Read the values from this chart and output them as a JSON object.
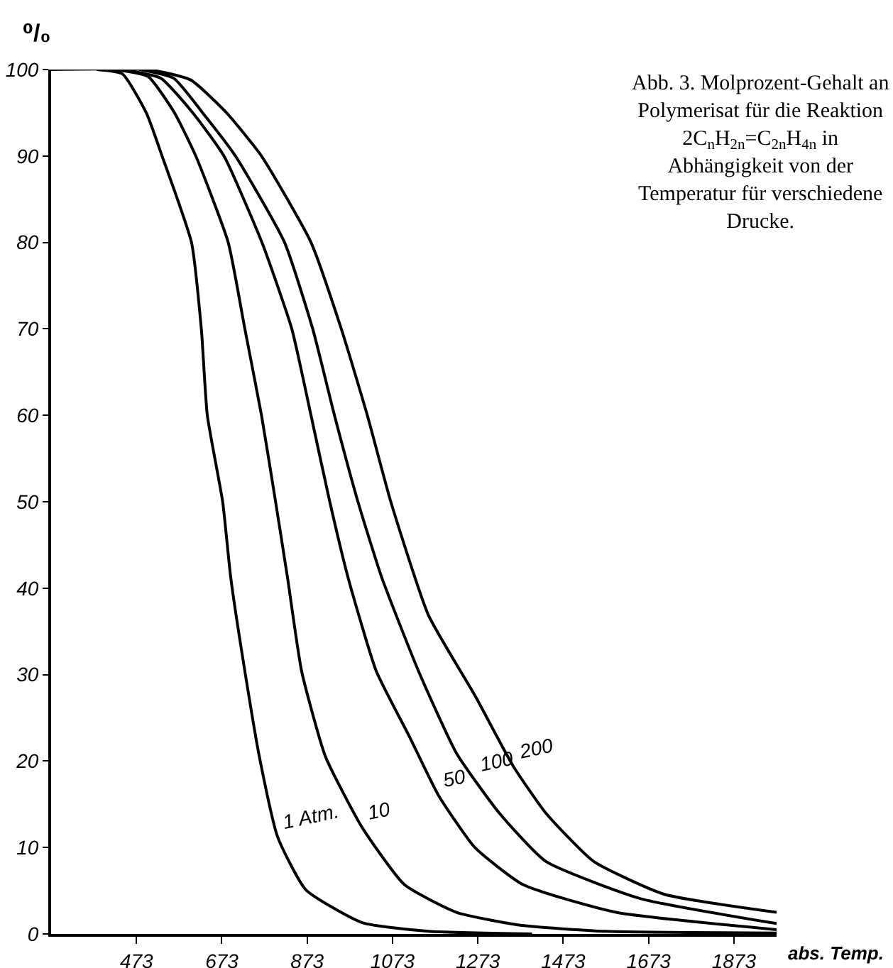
{
  "chart_data": {
    "type": "line",
    "title": "Abb. 3. Molprozent-Gehalt an Polymerisat für die Reaktion 2C$_{n}$H$_{2n}$=C$_{2n}$H$_{4n}$ in Abhängigkeit von der Temperatur für verschiedene Drucke.",
    "xlabel": "abs. Temp.",
    "ylabel": "⁰/₀",
    "xlim": [
      273,
      1973
    ],
    "ylim": [
      0,
      100
    ],
    "xticks": [
      473,
      673,
      873,
      1073,
      1273,
      1473,
      1673,
      1873
    ],
    "yticks": [
      0,
      10,
      20,
      30,
      40,
      50,
      60,
      70,
      80,
      90,
      100
    ],
    "grid": false,
    "marker": "none",
    "line_style": "solid",
    "series": [
      {
        "color": "#000000",
        "x": [
          380,
          440,
          496,
          533,
          602,
          625,
          639,
          675,
          694,
          727,
          761,
          804,
          870,
          1002,
          1157,
          1400
        ],
        "values": [
          100,
          99.5,
          95,
          90,
          80,
          70,
          60,
          50,
          41.2,
          30.4,
          20.5,
          11.2,
          5.1,
          1.3,
          0.3,
          0
        ]
      },
      {
        "color": "#000000",
        "x": [
          420,
          500,
          562,
          612,
          688,
          727,
          766,
          799,
          827,
          860,
          916,
          1002,
          1101,
          1223,
          1373,
          1573,
          1973
        ],
        "values": [
          100,
          99.2,
          95,
          90,
          80,
          70,
          60,
          50,
          41.2,
          30.4,
          20.5,
          12.3,
          5.7,
          2.5,
          1,
          0.3,
          0.1
        ]
      },
      {
        "color": "#000000",
        "x": [
          440,
          530,
          605,
          678,
          767,
          837,
          882,
          926,
          969,
          1035,
          1114,
          1180,
          1266,
          1379,
          1597,
          1973
        ],
        "values": [
          100,
          99,
          95,
          90,
          80,
          70,
          60,
          50,
          41.2,
          30.4,
          22.7,
          16.1,
          10,
          5.7,
          2.5,
          0.5
        ]
      },
      {
        "color": "#000000",
        "x": [
          480,
          560,
          628,
          705,
          820,
          886,
          937,
          992,
          1048,
          1134,
          1223,
          1323,
          1432,
          1653,
          1973
        ],
        "values": [
          100,
          99,
          95,
          90,
          80,
          70,
          60,
          50,
          41.2,
          30.4,
          20.9,
          14,
          8.4,
          4.1,
          1.2
        ]
      },
      {
        "color": "#000000",
        "x": [
          273,
          500,
          600,
          684,
          766,
          882,
          953,
          1014,
          1069,
          1157,
          1266,
          1356,
          1432,
          1544,
          1709,
          1973
        ],
        "values": [
          100,
          100,
          98.8,
          95,
          90,
          80,
          70,
          60,
          50,
          36.9,
          27.6,
          19.4,
          14,
          8.4,
          4.6,
          2.5
        ]
      }
    ],
    "annotations": [
      {
        "text": "1 Atm.",
        "x": 804,
        "y": 11.2
      },
      {
        "text": "10",
        "x": 1002,
        "y": 12.3
      },
      {
        "text": "50",
        "x": 1180,
        "y": 16.1
      },
      {
        "text": "100",
        "x": 1266,
        "y": 17.9
      },
      {
        "text": "200",
        "x": 1356,
        "y": 19.4
      }
    ]
  }
}
